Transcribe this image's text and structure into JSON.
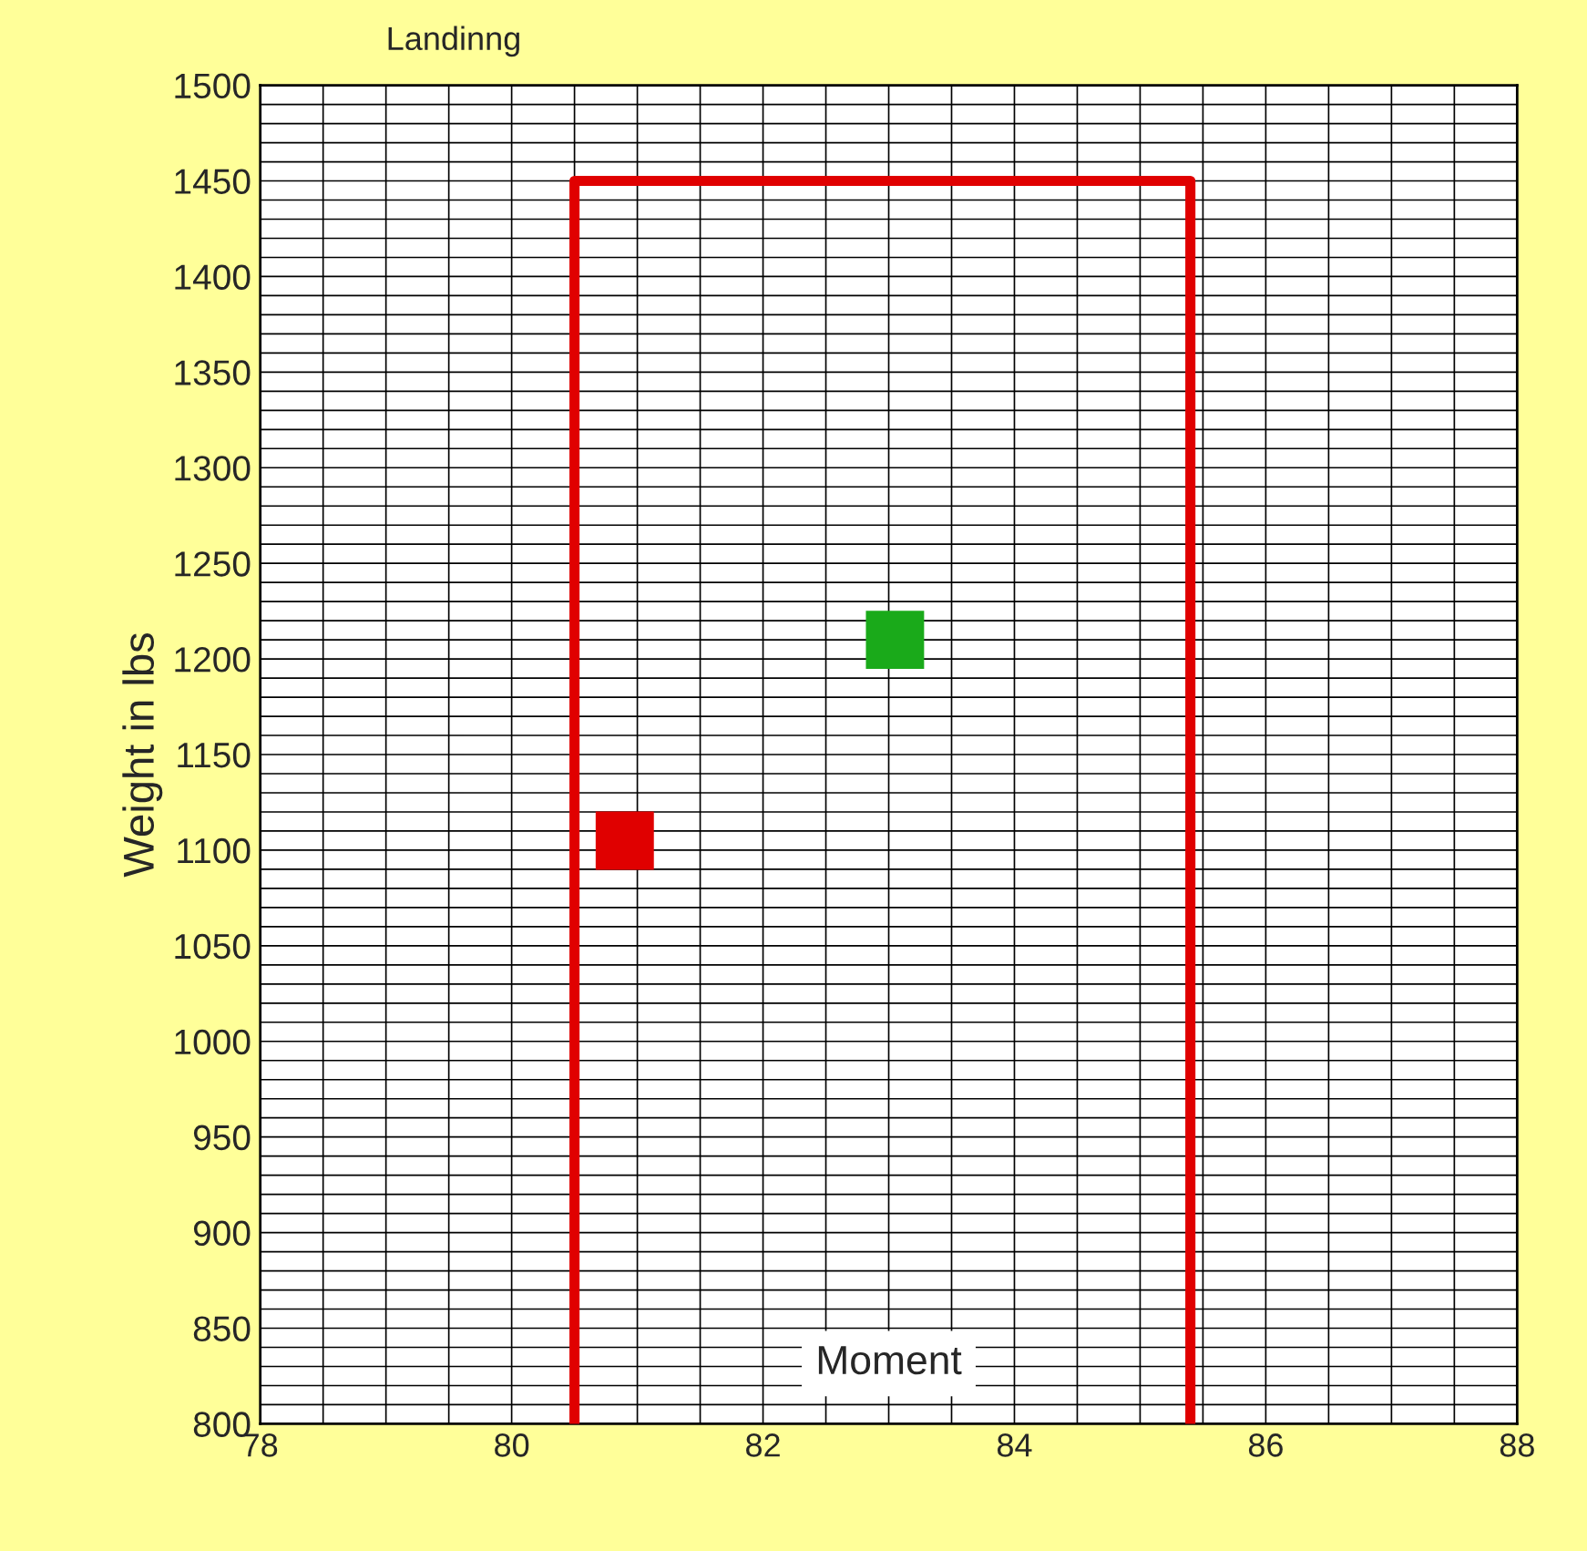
{
  "chart_data": {
    "type": "line",
    "title": "Landinng",
    "xlabel": "Moment",
    "ylabel": "Weight in lbs",
    "series": [
      {
        "color": "#e00000",
        "x": [
          80.5,
          80.5,
          85.4,
          85.4
        ],
        "values": [
          800,
          1450,
          1450,
          800
        ],
        "marker": "none",
        "line_style": "solid"
      },
      {
        "type": "scatter",
        "color": "#e00000",
        "x": [
          80.9
        ],
        "values": [
          1105
        ],
        "marker": "square"
      },
      {
        "type": "scatter",
        "color": "#1aaa1a",
        "x": [
          83.05
        ],
        "values": [
          1210
        ],
        "marker": "square"
      }
    ],
    "xlim": [
      78,
      88
    ],
    "ylim": [
      800,
      1500
    ],
    "xticks": [
      78,
      {
        "value": 78.5,
        "label": null
      },
      {
        "value": 79,
        "label": null
      },
      {
        "value": 79.5,
        "label": null
      },
      80,
      {
        "value": 80.5,
        "label": null
      },
      {
        "value": 81,
        "label": null
      },
      {
        "value": 81.5,
        "label": null
      },
      82,
      {
        "value": 82.5,
        "label": null
      },
      {
        "value": 83,
        "label": null
      },
      {
        "value": 83.5,
        "label": null
      },
      84,
      {
        "value": 84.5,
        "label": null
      },
      {
        "value": 85,
        "label": null
      },
      {
        "value": 85.5,
        "label": null
      },
      86,
      {
        "value": 86.5,
        "label": null
      },
      {
        "value": 87,
        "label": null
      },
      {
        "value": 87.5,
        "label": null
      },
      88
    ],
    "yticks": [
      800,
      {
        "value": 810,
        "label": null
      },
      {
        "value": 820,
        "label": null
      },
      {
        "value": 830,
        "label": null
      },
      {
        "value": 840,
        "label": null
      },
      850,
      {
        "value": 860,
        "label": null
      },
      {
        "value": 870,
        "label": null
      },
      {
        "value": 880,
        "label": null
      },
      {
        "value": 890,
        "label": null
      },
      900,
      {
        "value": 910,
        "label": null
      },
      {
        "value": 920,
        "label": null
      },
      {
        "value": 930,
        "label": null
      },
      {
        "value": 940,
        "label": null
      },
      950,
      {
        "value": 960,
        "label": null
      },
      {
        "value": 970,
        "label": null
      },
      {
        "value": 980,
        "label": null
      },
      {
        "value": 990,
        "label": null
      },
      1000,
      {
        "value": 1010,
        "label": null
      },
      {
        "value": 1020,
        "label": null
      },
      {
        "value": 1030,
        "label": null
      },
      {
        "value": 1040,
        "label": null
      },
      1050,
      {
        "value": 1060,
        "label": null
      },
      {
        "value": 1070,
        "label": null
      },
      {
        "value": 1080,
        "label": null
      },
      {
        "value": 1090,
        "label": null
      },
      1100,
      {
        "value": 1110,
        "label": null
      },
      {
        "value": 1120,
        "label": null
      },
      {
        "value": 1130,
        "label": null
      },
      {
        "value": 1140,
        "label": null
      },
      1150,
      {
        "value": 1160,
        "label": null
      },
      {
        "value": 1170,
        "label": null
      },
      {
        "value": 1180,
        "label": null
      },
      {
        "value": 1190,
        "label": null
      },
      1200,
      {
        "value": 1210,
        "label": null
      },
      {
        "value": 1220,
        "label": null
      },
      {
        "value": 1230,
        "label": null
      },
      {
        "value": 1240,
        "label": null
      },
      1250,
      {
        "value": 1260,
        "label": null
      },
      {
        "value": 1270,
        "label": null
      },
      {
        "value": 1280,
        "label": null
      },
      {
        "value": 1290,
        "label": null
      },
      1300,
      {
        "value": 1310,
        "label": null
      },
      {
        "value": 1320,
        "label": null
      },
      {
        "value": 1330,
        "label": null
      },
      {
        "value": 1340,
        "label": null
      },
      1350,
      {
        "value": 1360,
        "label": null
      },
      {
        "value": 1370,
        "label": null
      },
      {
        "value": 1380,
        "label": null
      },
      {
        "value": 1390,
        "label": null
      },
      1400,
      {
        "value": 1410,
        "label": null
      },
      {
        "value": 1420,
        "label": null
      },
      {
        "value": 1430,
        "label": null
      },
      {
        "value": 1440,
        "label": null
      },
      1450,
      {
        "value": 1460,
        "label": null
      },
      {
        "value": 1470,
        "label": null
      },
      {
        "value": 1480,
        "label": null
      },
      {
        "value": 1490,
        "label": null
      },
      1500
    ],
    "grid": true,
    "legend": false
  }
}
